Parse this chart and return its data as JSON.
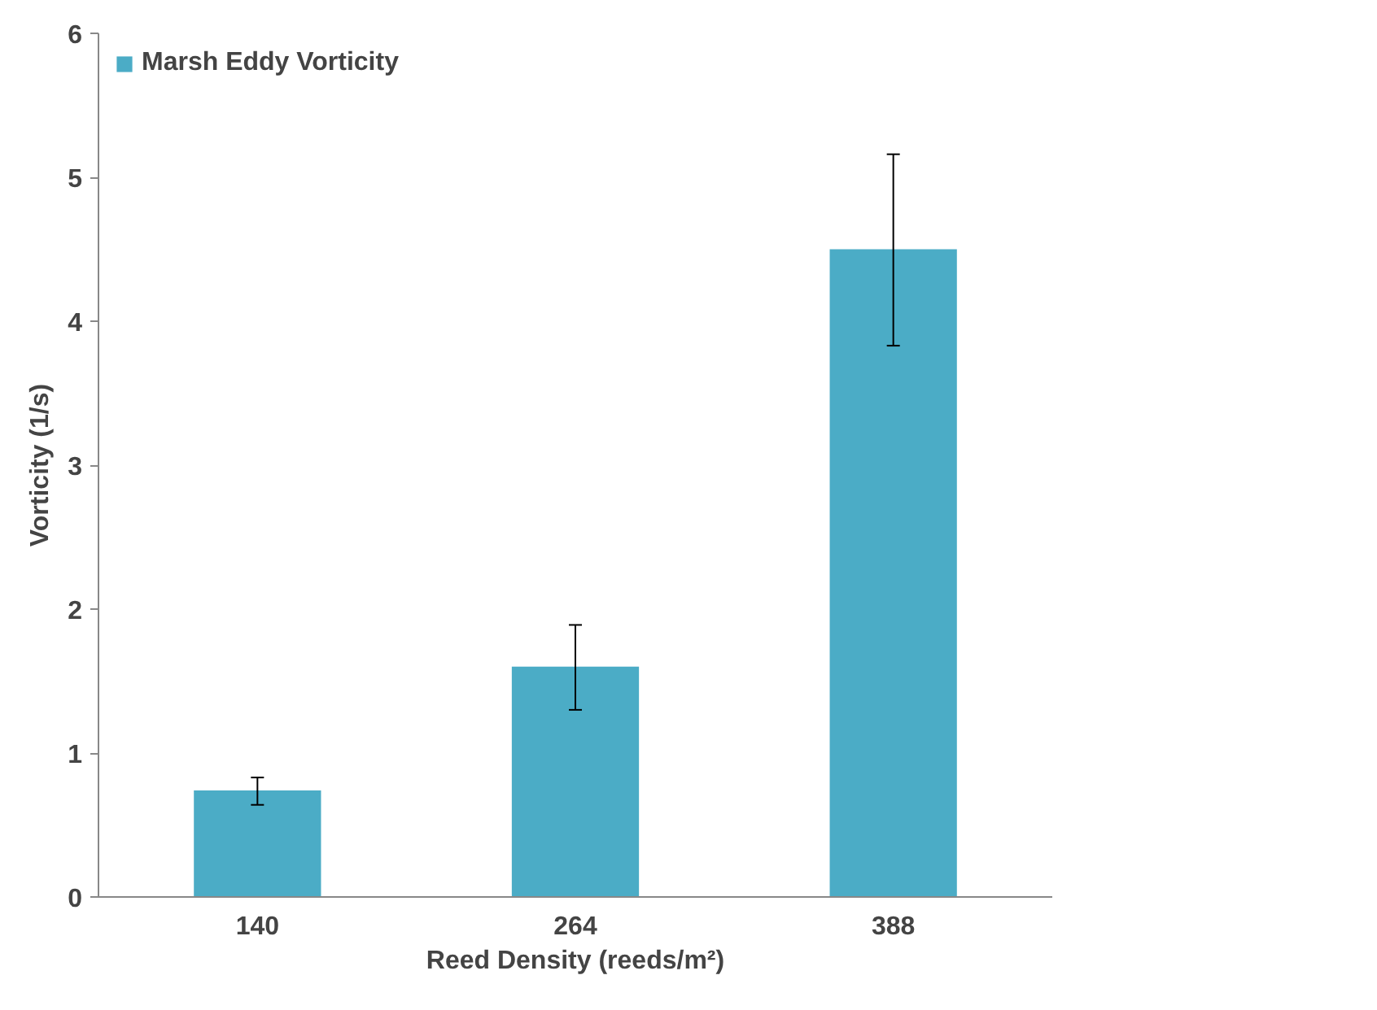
{
  "chart_data": {
    "type": "bar",
    "categories": [
      "140",
      "264",
      "388"
    ],
    "series": [
      {
        "name": "Marsh Eddy Vorticity",
        "color": "#4bacc6",
        "values": [
          0.74,
          1.6,
          4.5
        ],
        "errors": [
          [
            0.64,
            0.83
          ],
          [
            1.3,
            1.89
          ],
          [
            3.83,
            5.16
          ]
        ]
      }
    ],
    "xlabel": "Reed Density (reeds/m²)",
    "ylabel": "Vorticity (1/s)",
    "ylim": [
      0,
      6
    ],
    "yticks": [
      0,
      1,
      2,
      3,
      4,
      5,
      6
    ],
    "grid": false,
    "legend": "top left"
  }
}
